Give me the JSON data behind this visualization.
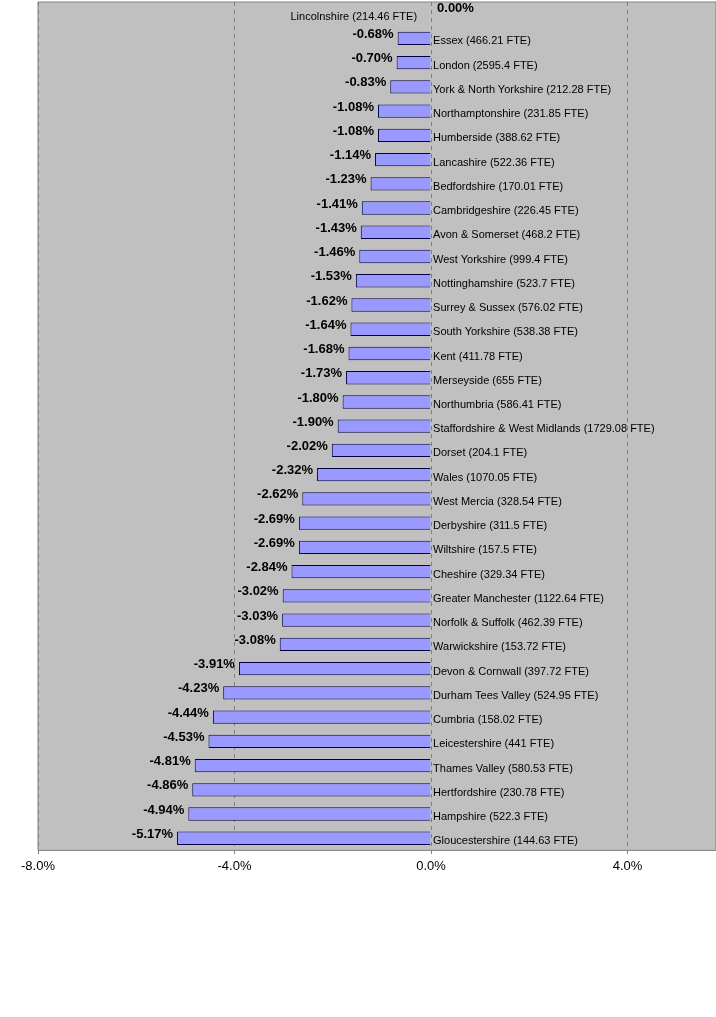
{
  "chart_data": {
    "type": "bar",
    "orientation": "horizontal",
    "categories": [
      "Lincolnshire (214.46 FTE)",
      "Essex (466.21 FTE)",
      "London (2595.4 FTE)",
      "York & North Yorkshire (212.28 FTE)",
      "Northamptonshire (231.85 FTE)",
      "Humberside (388.62 FTE)",
      "Lancashire (522.36 FTE)",
      "Bedfordshire (170.01 FTE)",
      "Cambridgeshire (226.45 FTE)",
      "Avon & Somerset (468.2 FTE)",
      "West Yorkshire (999.4 FTE)",
      "Nottinghamshire (523.7 FTE)",
      "Surrey & Sussex (576.02 FTE)",
      "South Yorkshire (538.38 FTE)",
      "Kent (411.78 FTE)",
      "Merseyside (655 FTE)",
      "Northumbria (586.41 FTE)",
      "Staffordshire & West Midlands (1729.08 FTE)",
      "Dorset (204.1 FTE)",
      "Wales (1070.05 FTE)",
      "West Mercia (328.54 FTE)",
      "Derbyshire (311.5 FTE)",
      "Wiltshire (157.5 FTE)",
      "Cheshire (329.34 FTE)",
      "Greater Manchester (1122.64 FTE)",
      "Norfolk & Suffolk (462.39 FTE)",
      "Warwickshire (153.72 FTE)",
      "Devon & Cornwall (397.72 FTE)",
      "Durham Tees Valley (524.95 FTE)",
      "Cumbria (158.02 FTE)",
      "Leicestershire (441 FTE)",
      "Thames Valley (580.53 FTE)",
      "Hertfordshire (230.78 FTE)",
      "Hampshire (522.3 FTE)",
      "Gloucestershire (144.63 FTE)"
    ],
    "values": [
      0.0,
      -0.68,
      -0.7,
      -0.83,
      -1.08,
      -1.08,
      -1.14,
      -1.23,
      -1.41,
      -1.43,
      -1.46,
      -1.53,
      -1.62,
      -1.64,
      -1.68,
      -1.73,
      -1.8,
      -1.9,
      -2.02,
      -2.32,
      -2.62,
      -2.69,
      -2.69,
      -2.84,
      -3.02,
      -3.03,
      -3.08,
      -3.91,
      -4.23,
      -4.44,
      -4.53,
      -4.81,
      -4.86,
      -4.94,
      -5.17
    ],
    "value_labels": [
      "0.00%",
      "-0.68%",
      "-0.70%",
      "-0.83%",
      "-1.08%",
      "-1.08%",
      "-1.14%",
      "-1.23%",
      "-1.41%",
      "-1.43%",
      "-1.46%",
      "-1.53%",
      "-1.62%",
      "-1.64%",
      "-1.68%",
      "-1.73%",
      "-1.80%",
      "-1.90%",
      "-2.02%",
      "-2.32%",
      "-2.62%",
      "-2.69%",
      "-2.69%",
      "-2.84%",
      "-3.02%",
      "-3.03%",
      "-3.08%",
      "-3.91%",
      "-4.23%",
      "-4.44%",
      "-4.53%",
      "-4.81%",
      "-4.86%",
      "-4.94%",
      "-5.17%"
    ],
    "color": "#9999ff",
    "xlim": [
      -8,
      5.8
    ],
    "xticks": [
      {
        "value": -8,
        "label": "-8.0%"
      },
      {
        "value": -4,
        "label": "-4.0%"
      },
      {
        "value": 0,
        "label": "0.0%"
      },
      {
        "value": 4,
        "label": "4.0%"
      }
    ],
    "grid": "x",
    "legend": false
  }
}
